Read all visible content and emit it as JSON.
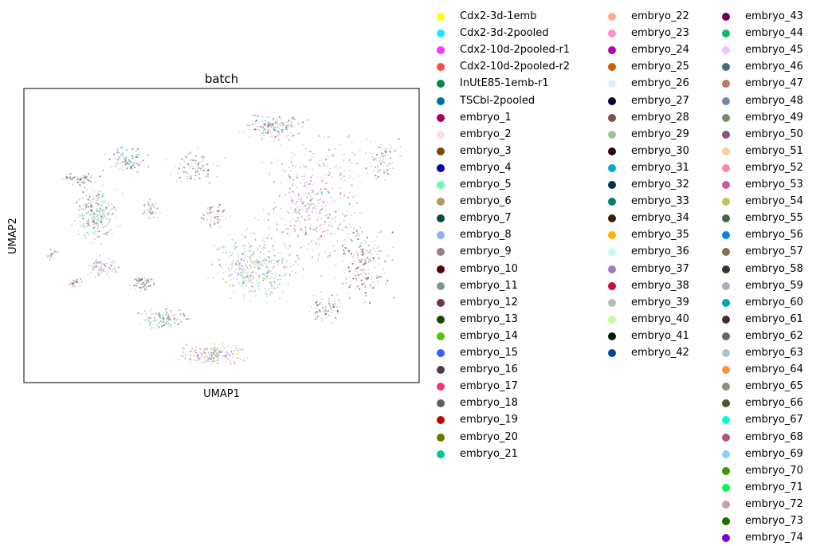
{
  "chart_data": {
    "type": "scatter",
    "title": "batch",
    "xlabel": "UMAP1",
    "ylabel": "UMAP2",
    "xticks": [],
    "yticks": [],
    "legend_position": "right, outside plot, three columns",
    "series": [
      {
        "name": "Cdx2-3d-1emb",
        "color": "#ffff00"
      },
      {
        "name": "Cdx2-3d-2pooled",
        "color": "#1ce6ff"
      },
      {
        "name": "Cdx2-10d-2pooled-r1",
        "color": "#ff34ff"
      },
      {
        "name": "Cdx2-10d-2pooled-r2",
        "color": "#ff4a46"
      },
      {
        "name": "InUtE85-1emb-r1",
        "color": "#008941"
      },
      {
        "name": "TSCbl-2pooled",
        "color": "#006fa6"
      },
      {
        "name": "embryo_1",
        "color": "#a30059"
      },
      {
        "name": "embryo_2",
        "color": "#ffdbe5"
      },
      {
        "name": "embryo_3",
        "color": "#7a4900"
      },
      {
        "name": "embryo_4",
        "color": "#0000a6"
      },
      {
        "name": "embryo_5",
        "color": "#63ffac"
      },
      {
        "name": "embryo_6",
        "color": "#b79762"
      },
      {
        "name": "embryo_7",
        "color": "#004d43"
      },
      {
        "name": "embryo_8",
        "color": "#8fb0ff"
      },
      {
        "name": "embryo_9",
        "color": "#997d87"
      },
      {
        "name": "embryo_10",
        "color": "#5a0007"
      },
      {
        "name": "embryo_11",
        "color": "#809693"
      },
      {
        "name": "embryo_12",
        "color": "#6a3a4c"
      },
      {
        "name": "embryo_13",
        "color": "#1b4400"
      },
      {
        "name": "embryo_14",
        "color": "#4fc601"
      },
      {
        "name": "embryo_15",
        "color": "#3b5dff"
      },
      {
        "name": "embryo_16",
        "color": "#4a3b53"
      },
      {
        "name": "embryo_17",
        "color": "#ff2f80"
      },
      {
        "name": "embryo_18",
        "color": "#61615a"
      },
      {
        "name": "embryo_19",
        "color": "#ba0900"
      },
      {
        "name": "embryo_20",
        "color": "#6b7900"
      },
      {
        "name": "embryo_21",
        "color": "#00c2a0"
      },
      {
        "name": "embryo_22",
        "color": "#ffaa92"
      },
      {
        "name": "embryo_23",
        "color": "#ff90c9"
      },
      {
        "name": "embryo_24",
        "color": "#b903aa"
      },
      {
        "name": "embryo_25",
        "color": "#d16100"
      },
      {
        "name": "embryo_26",
        "color": "#ddefff"
      },
      {
        "name": "embryo_27",
        "color": "#000035"
      },
      {
        "name": "embryo_28",
        "color": "#7b4f4b"
      },
      {
        "name": "embryo_29",
        "color": "#a1c299"
      },
      {
        "name": "embryo_30",
        "color": "#300018"
      },
      {
        "name": "embryo_31",
        "color": "#0aa6d8"
      },
      {
        "name": "embryo_32",
        "color": "#013349"
      },
      {
        "name": "embryo_33",
        "color": "#00846f"
      },
      {
        "name": "embryo_34",
        "color": "#372101"
      },
      {
        "name": "embryo_35",
        "color": "#ffb500"
      },
      {
        "name": "embryo_36",
        "color": "#c2ffed"
      },
      {
        "name": "embryo_37",
        "color": "#a079bf"
      },
      {
        "name": "embryo_38",
        "color": "#cc0744"
      },
      {
        "name": "embryo_39",
        "color": "#c0b9b2"
      },
      {
        "name": "embryo_40",
        "color": "#c2ff99"
      },
      {
        "name": "embryo_41",
        "color": "#001e09"
      },
      {
        "name": "embryo_42",
        "color": "#00489c"
      },
      {
        "name": "embryo_43",
        "color": "#6f0062"
      },
      {
        "name": "embryo_44",
        "color": "#0cbd66"
      },
      {
        "name": "embryo_45",
        "color": "#eec3ff"
      },
      {
        "name": "embryo_46",
        "color": "#456d75"
      },
      {
        "name": "embryo_47",
        "color": "#b77b68"
      },
      {
        "name": "embryo_48",
        "color": "#7a87a1"
      },
      {
        "name": "embryo_49",
        "color": "#788d66"
      },
      {
        "name": "embryo_50",
        "color": "#885578"
      },
      {
        "name": "embryo_51",
        "color": "#fad09f"
      },
      {
        "name": "embryo_52",
        "color": "#ff8a9a"
      },
      {
        "name": "embryo_53",
        "color": "#d157a0"
      },
      {
        "name": "embryo_54",
        "color": "#bec459"
      },
      {
        "name": "embryo_55",
        "color": "#456648"
      },
      {
        "name": "embryo_56",
        "color": "#0086ed"
      },
      {
        "name": "embryo_57",
        "color": "#886f4c"
      },
      {
        "name": "embryo_58",
        "color": "#34362d"
      },
      {
        "name": "embryo_59",
        "color": "#b4a8bd"
      },
      {
        "name": "embryo_60",
        "color": "#00a6aa"
      },
      {
        "name": "embryo_61",
        "color": "#452c2c"
      },
      {
        "name": "embryo_62",
        "color": "#636375"
      },
      {
        "name": "embryo_63",
        "color": "#a3c8c9"
      },
      {
        "name": "embryo_64",
        "color": "#ff913f"
      },
      {
        "name": "embryo_65",
        "color": "#938a81"
      },
      {
        "name": "embryo_66",
        "color": "#575329"
      },
      {
        "name": "embryo_67",
        "color": "#00fecf"
      },
      {
        "name": "embryo_68",
        "color": "#b05b6f"
      },
      {
        "name": "embryo_69",
        "color": "#8cd0ff"
      },
      {
        "name": "embryo_70",
        "color": "#3b9700"
      },
      {
        "name": "embryo_71",
        "color": "#04f757"
      },
      {
        "name": "embryo_72",
        "color": "#c8a1a1"
      },
      {
        "name": "embryo_73",
        "color": "#1e6e00"
      },
      {
        "name": "embryo_74",
        "color": "#7900d7"
      }
    ]
  }
}
